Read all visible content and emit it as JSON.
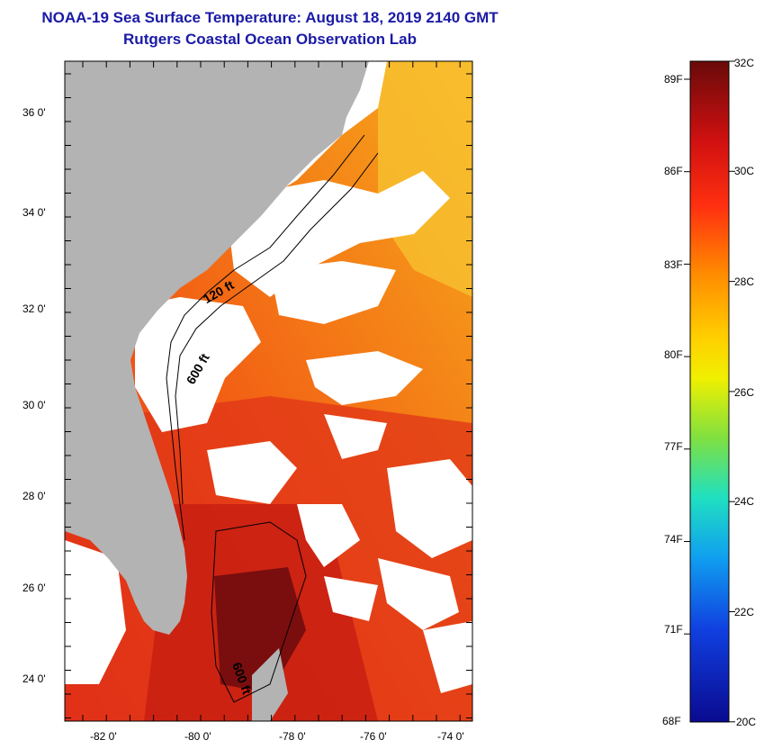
{
  "header": {
    "title": "NOAA-19 Sea Surface Temperature:  August 18, 2019 2140 GMT",
    "subtitle": "Rutgers Coastal Ocean Observation Lab"
  },
  "map": {
    "lat_labels": [
      "36 0'",
      "34 0'",
      "32 0'",
      "30 0'",
      "28 0'",
      "26 0'",
      "24 0'"
    ],
    "lon_labels": [
      "-82 0'",
      "-80 0'",
      "-78 0'",
      "-76 0'",
      "-74 0'"
    ],
    "contour_labels": [
      "120 ft",
      "600 ft",
      "600 ft"
    ]
  },
  "colorbar": {
    "f_labels": [
      "89F",
      "86F",
      "83F",
      "80F",
      "77F",
      "74F",
      "71F",
      "68F"
    ],
    "c_labels": [
      "32C",
      "30C",
      "28C",
      "26C",
      "24C",
      "22C",
      "20C"
    ]
  },
  "colors": {
    "land": "#b3b3b3",
    "cloud": "#ffffff",
    "sst_main": "#f06010",
    "sst_warm": "#d42010",
    "sst_hot": "#7a0e0e",
    "title": "#1a1aa6"
  }
}
